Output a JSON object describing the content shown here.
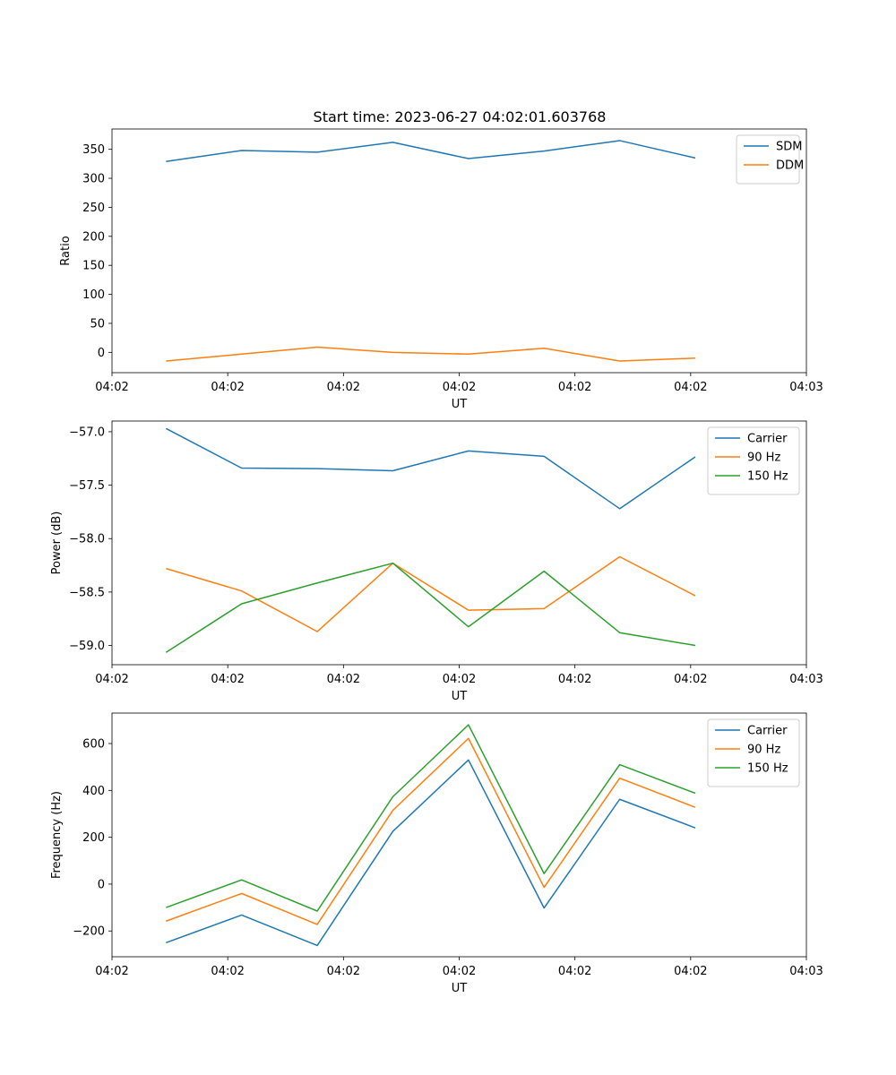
{
  "title": "Start time: 2023-06-27 04:02:01.603768",
  "chart_data": [
    {
      "type": "line",
      "xlabel": "UT",
      "ylabel": "Ratio",
      "xlim": [
        0,
        9
      ],
      "x_ticks": [
        0,
        1.5,
        3,
        4.5,
        6,
        7.5,
        9
      ],
      "x_tick_labels": [
        "04:02",
        "04:02",
        "04:02",
        "04:02",
        "04:02",
        "04:02",
        "04:03"
      ],
      "ylim": [
        -35,
        385
      ],
      "y_ticks": [
        0,
        50,
        100,
        150,
        200,
        250,
        300,
        350
      ],
      "y_tick_labels": [
        "0",
        "50",
        "100",
        "150",
        "200",
        "250",
        "300",
        "350"
      ],
      "x": [
        0.7,
        1.68,
        2.66,
        3.64,
        4.62,
        5.6,
        6.58,
        7.56
      ],
      "legend": "top-right",
      "series": [
        {
          "name": "SDM",
          "color": "#1f77b4",
          "values": [
            329,
            348,
            345,
            362,
            334,
            347,
            365,
            335
          ]
        },
        {
          "name": "DDM",
          "color": "#ff7f0e",
          "values": [
            -15,
            -3,
            9,
            0,
            -3,
            7,
            -15,
            -10
          ]
        }
      ]
    },
    {
      "type": "line",
      "xlabel": "UT",
      "ylabel": "Power (dB)",
      "xlim": [
        0,
        9
      ],
      "x_ticks": [
        0,
        1.5,
        3,
        4.5,
        6,
        7.5,
        9
      ],
      "x_tick_labels": [
        "04:02",
        "04:02",
        "04:02",
        "04:02",
        "04:02",
        "04:02",
        "04:03"
      ],
      "ylim": [
        -59.18,
        -56.9
      ],
      "y_ticks": [
        -57.0,
        -57.5,
        -58.0,
        -58.5,
        -59.0
      ],
      "y_tick_labels": [
        "−57.0",
        "−57.5",
        "−58.0",
        "−58.5",
        "−59.0"
      ],
      "x": [
        0.7,
        1.68,
        2.66,
        3.64,
        4.62,
        5.6,
        6.58,
        7.56
      ],
      "legend": "top-right",
      "series": [
        {
          "name": "Carrier",
          "color": "#1f77b4",
          "values": [
            -56.97,
            -57.34,
            -57.345,
            -57.365,
            -57.18,
            -57.23,
            -57.72,
            -57.235
          ]
        },
        {
          "name": "90 Hz",
          "color": "#ff7f0e",
          "values": [
            -58.28,
            -58.49,
            -58.87,
            -58.23,
            -58.67,
            -58.655,
            -58.17,
            -58.535
          ]
        },
        {
          "name": "150 Hz",
          "color": "#2ca02c",
          "values": [
            -59.065,
            -58.61,
            -58.415,
            -58.23,
            -58.825,
            -58.305,
            -58.88,
            -59.0
          ]
        }
      ]
    },
    {
      "type": "line",
      "xlabel": "UT",
      "ylabel": "Frequency (Hz)",
      "xlim": [
        0,
        9
      ],
      "x_ticks": [
        0,
        1.5,
        3,
        4.5,
        6,
        7.5,
        9
      ],
      "x_tick_labels": [
        "04:02",
        "04:02",
        "04:02",
        "04:02",
        "04:02",
        "04:02",
        "04:03"
      ],
      "ylim": [
        -310,
        730
      ],
      "y_ticks": [
        -200,
        0,
        200,
        400,
        600
      ],
      "y_tick_labels": [
        "−200",
        "0",
        "200",
        "400",
        "600"
      ],
      "x": [
        0.7,
        1.68,
        2.66,
        3.64,
        4.62,
        5.6,
        6.58,
        7.56
      ],
      "legend": "top-right",
      "series": [
        {
          "name": "Carrier",
          "color": "#1f77b4",
          "values": [
            -250,
            -132,
            -262,
            225,
            530,
            -102,
            362,
            240
          ]
        },
        {
          "name": "90 Hz",
          "color": "#ff7f0e",
          "values": [
            -158,
            -40,
            -172,
            315,
            622,
            -14,
            452,
            328
          ]
        },
        {
          "name": "150 Hz",
          "color": "#2ca02c",
          "values": [
            -100,
            18,
            -115,
            373,
            680,
            45,
            510,
            388
          ]
        }
      ]
    }
  ]
}
